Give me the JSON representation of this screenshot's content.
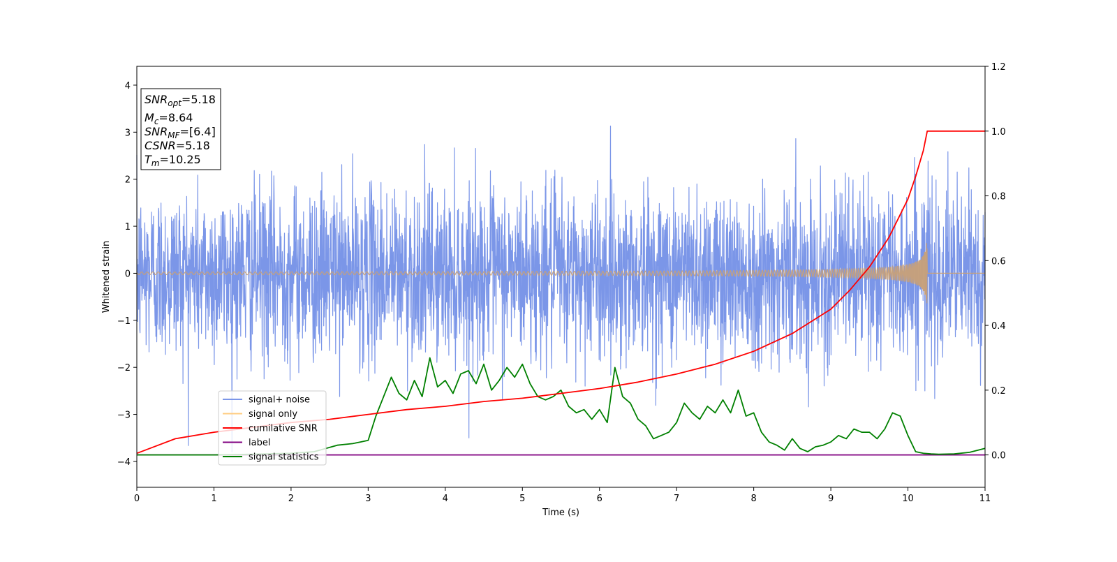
{
  "chart_data": {
    "type": "line",
    "title": "",
    "xlabel": "Time (s)",
    "ylabel": "Whitened strain",
    "y2label": "",
    "xlim": [
      0,
      11
    ],
    "ylim": [
      -4.55,
      4.4
    ],
    "y2lim": [
      -0.1,
      1.2
    ],
    "xticks": [
      "0",
      "1",
      "2",
      "3",
      "4",
      "5",
      "6",
      "7",
      "8",
      "9",
      "10",
      "11"
    ],
    "yticks": [
      "4",
      "3",
      "2",
      "1",
      "0",
      "−1",
      "−2",
      "−3",
      "−4"
    ],
    "y2ticks": [
      "1.2",
      "1.0",
      "0.8",
      "0.6",
      "0.4",
      "0.2",
      "0.0"
    ],
    "grid": false,
    "legend_position": "lower-left",
    "info_box": {
      "snr_opt": "=5.18",
      "mc": "=8.64",
      "snr_mf": "=[6.4]",
      "csnr": "=5.18",
      "tm": "=10.25"
    },
    "series": [
      {
        "name": "signal+ noise",
        "axis": "left",
        "color": "#7b96e8",
        "description_stats": {
          "mean": 0,
          "std": 1.0,
          "t_start": 0,
          "t_end": 11
        }
      },
      {
        "name": "signal only",
        "axis": "left",
        "color": "#ffcc80",
        "merger_time": 10.25,
        "peak_amplitude": 0.8
      },
      {
        "name": "cumilative SNR",
        "axis": "right",
        "color": "#ff0000",
        "x": [
          0,
          0.5,
          1,
          1.5,
          2,
          2.5,
          3,
          3.5,
          4,
          4.5,
          5,
          5.5,
          6,
          6.5,
          7,
          7.5,
          8,
          8.5,
          9,
          9.25,
          9.5,
          9.75,
          10,
          10.1,
          10.2,
          10.25,
          11
        ],
        "values": [
          0.005,
          0.05,
          0.07,
          0.085,
          0.1,
          0.11,
          0.125,
          0.14,
          0.15,
          0.165,
          0.175,
          0.19,
          0.205,
          0.225,
          0.25,
          0.28,
          0.32,
          0.375,
          0.45,
          0.51,
          0.58,
          0.67,
          0.79,
          0.86,
          0.94,
          1.0,
          1.0
        ]
      },
      {
        "name": "label",
        "axis": "right",
        "color": "#800080",
        "x": [
          0,
          11
        ],
        "values": [
          0,
          0
        ]
      },
      {
        "name": "signal statistics",
        "axis": "right",
        "color": "#008000",
        "x": [
          0,
          0.5,
          1,
          1.5,
          2,
          2.3,
          2.6,
          2.8,
          2.9,
          3.0,
          3.1,
          3.2,
          3.3,
          3.4,
          3.5,
          3.6,
          3.7,
          3.8,
          3.9,
          4.0,
          4.1,
          4.2,
          4.3,
          4.4,
          4.5,
          4.6,
          4.7,
          4.8,
          4.9,
          5.0,
          5.1,
          5.2,
          5.3,
          5.4,
          5.5,
          5.6,
          5.7,
          5.8,
          5.9,
          6.0,
          6.1,
          6.2,
          6.3,
          6.4,
          6.5,
          6.6,
          6.7,
          6.8,
          6.9,
          7.0,
          7.1,
          7.2,
          7.3,
          7.4,
          7.5,
          7.6,
          7.7,
          7.8,
          7.9,
          8.0,
          8.1,
          8.2,
          8.3,
          8.4,
          8.5,
          8.6,
          8.7,
          8.8,
          8.9,
          9.0,
          9.1,
          9.2,
          9.3,
          9.4,
          9.5,
          9.6,
          9.7,
          9.8,
          9.9,
          10.0,
          10.1,
          10.2,
          10.3,
          10.4,
          10.6,
          10.8,
          11.0
        ],
        "values": [
          0.0,
          0.0,
          0.0,
          0.002,
          0.005,
          0.01,
          0.03,
          0.035,
          0.04,
          0.045,
          0.12,
          0.18,
          0.24,
          0.19,
          0.17,
          0.23,
          0.18,
          0.3,
          0.21,
          0.23,
          0.19,
          0.25,
          0.26,
          0.22,
          0.28,
          0.2,
          0.23,
          0.27,
          0.24,
          0.28,
          0.22,
          0.18,
          0.17,
          0.18,
          0.2,
          0.15,
          0.13,
          0.14,
          0.11,
          0.14,
          0.1,
          0.27,
          0.18,
          0.16,
          0.11,
          0.09,
          0.05,
          0.06,
          0.07,
          0.1,
          0.16,
          0.13,
          0.11,
          0.15,
          0.13,
          0.17,
          0.13,
          0.2,
          0.12,
          0.13,
          0.07,
          0.04,
          0.03,
          0.015,
          0.05,
          0.02,
          0.01,
          0.025,
          0.03,
          0.04,
          0.06,
          0.05,
          0.08,
          0.07,
          0.07,
          0.05,
          0.08,
          0.13,
          0.12,
          0.06,
          0.01,
          0.005,
          0.003,
          0.002,
          0.003,
          0.008,
          0.02
        ]
      }
    ]
  }
}
